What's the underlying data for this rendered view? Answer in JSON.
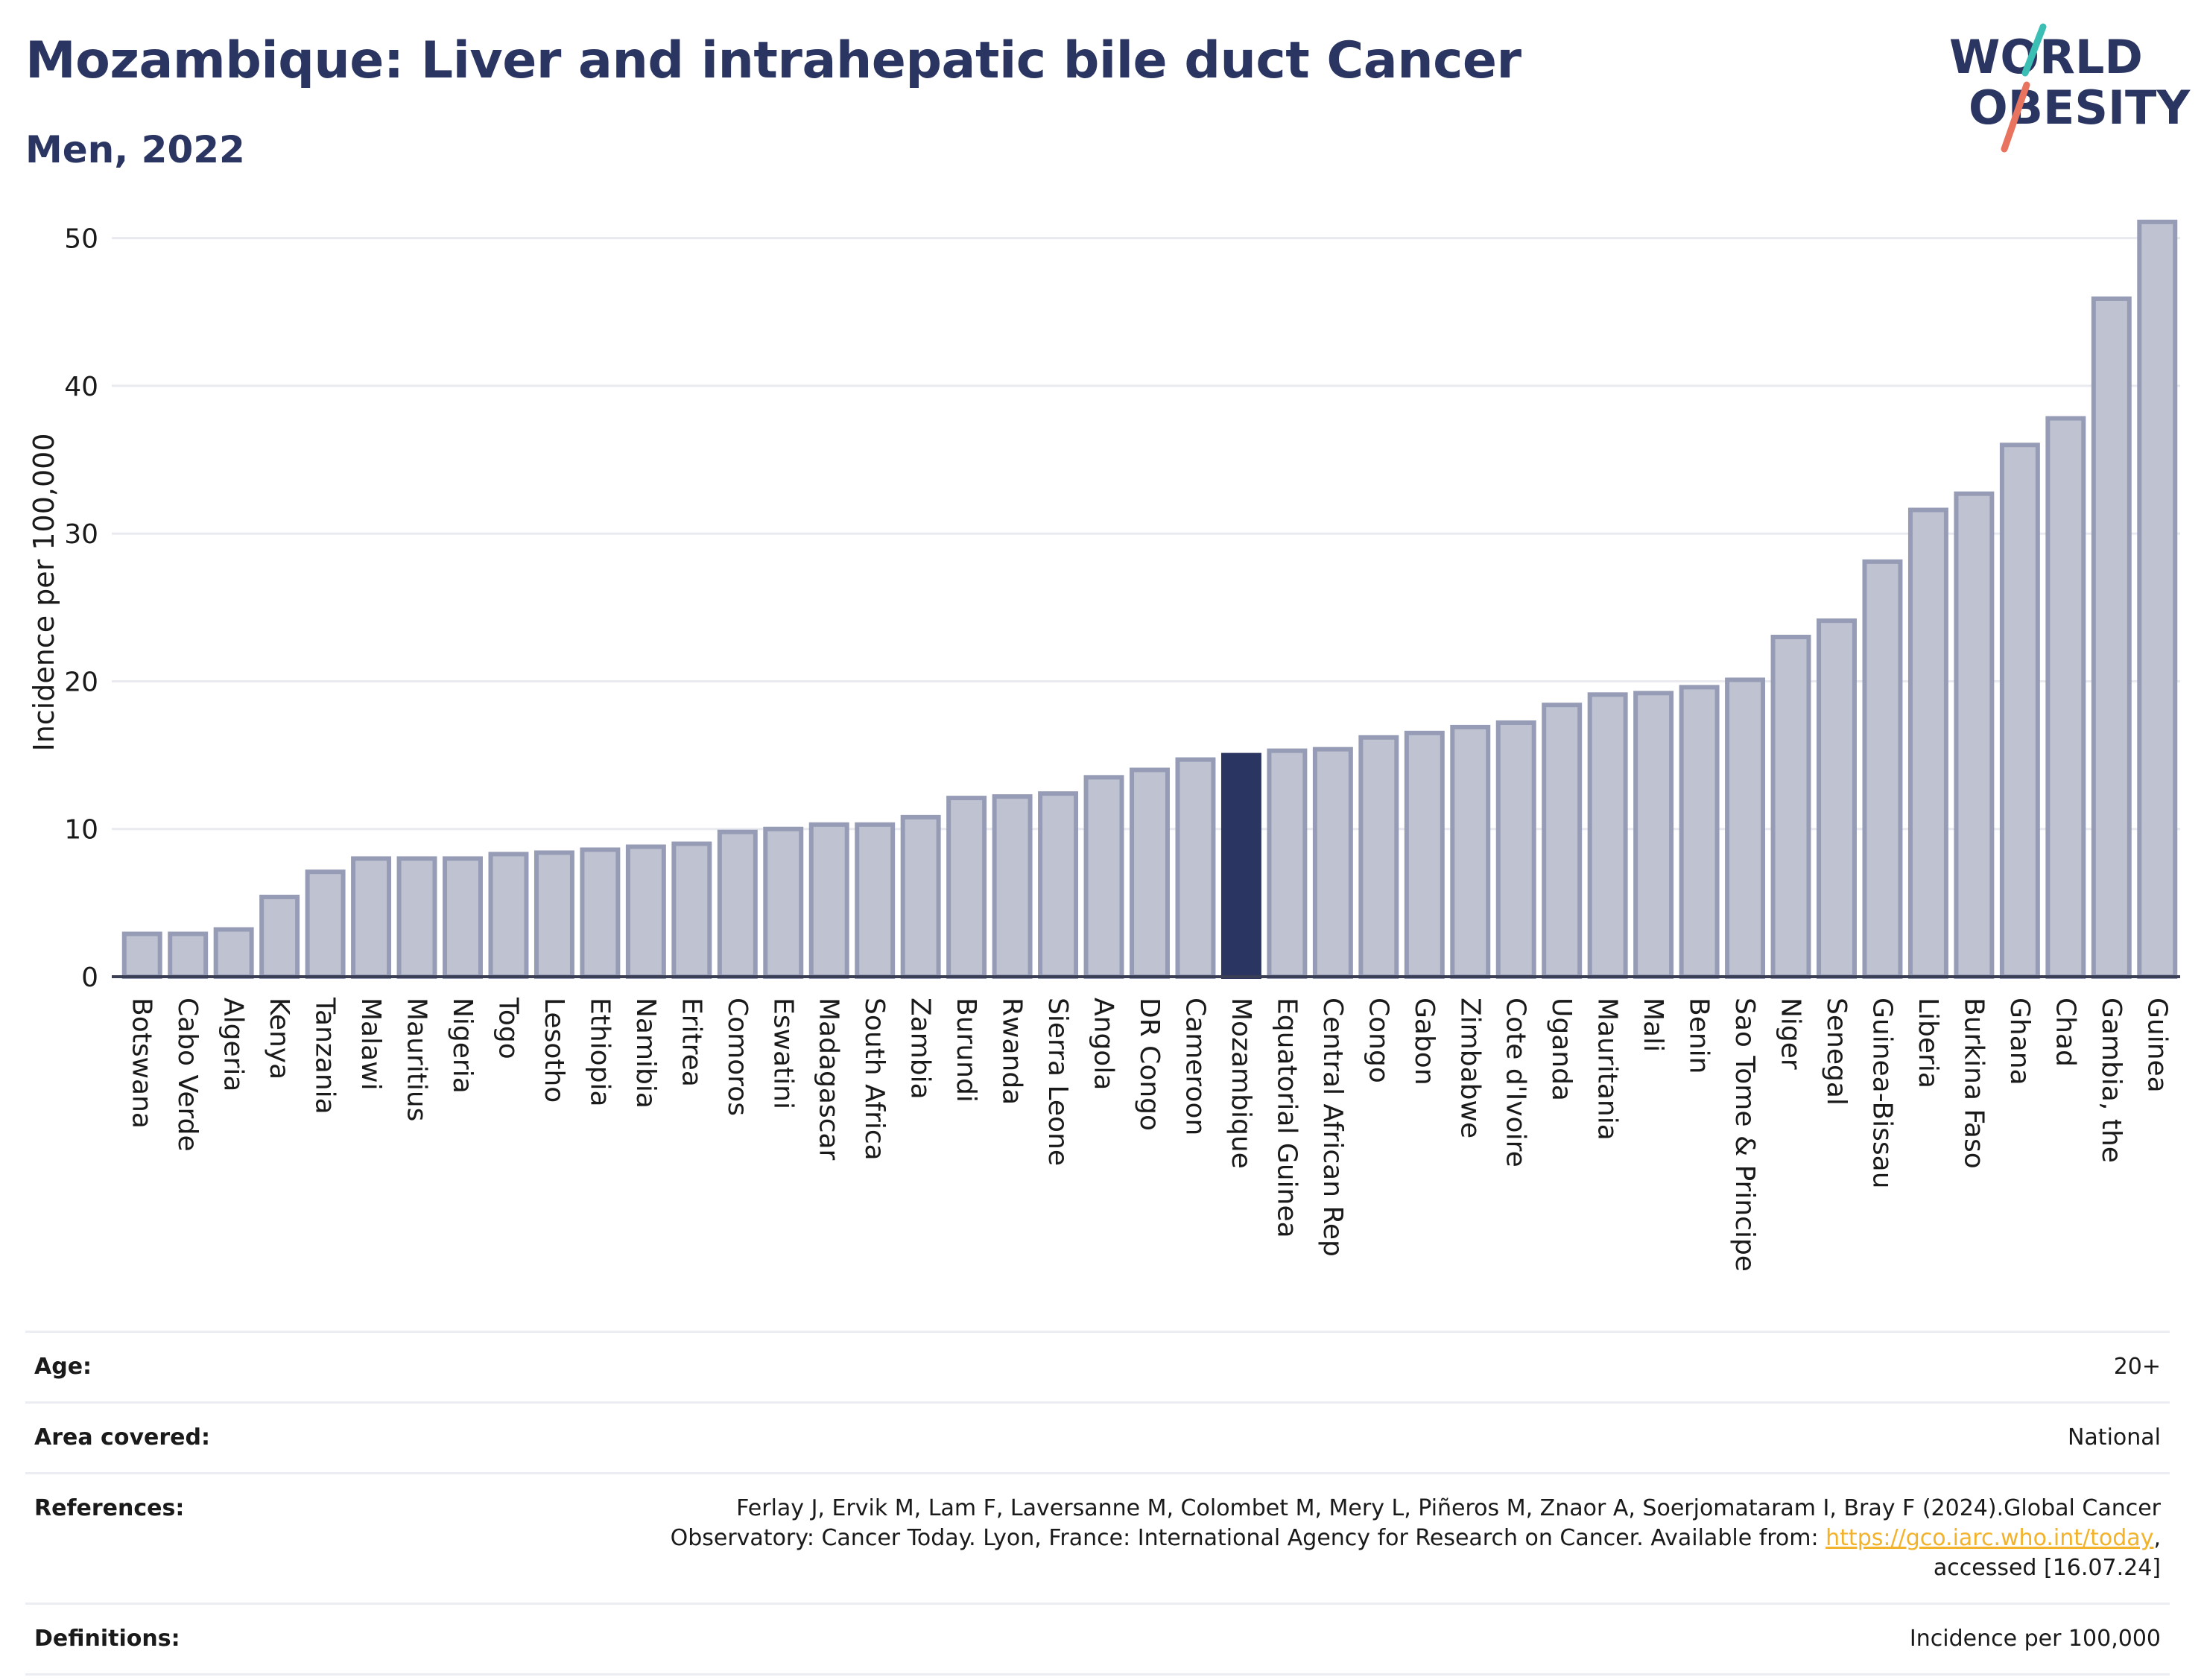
{
  "title": "Mozambique: Liver and intrahepatic bile duct Cancer",
  "subtitle": "Men, 2022",
  "logo": {
    "line1": "WORLD",
    "line2": "OBESITY"
  },
  "colors": {
    "title": "#2b3561",
    "bar_fill": "#bfc3d1",
    "bar_stroke": "#969cb5",
    "highlight": "#2b3561",
    "grid": "#e8eaf0",
    "link": "#f2b22a",
    "logo_teal": "#3bbfb5",
    "logo_coral": "#e8735f"
  },
  "chart_data": {
    "type": "bar",
    "ylabel": "Incidence per 100,000",
    "ylim": [
      0,
      52
    ],
    "yticks": [
      0,
      10,
      20,
      30,
      40,
      50
    ],
    "grid": true,
    "highlight": "Mozambique",
    "categories": [
      "Botswana",
      "Cabo Verde",
      "Algeria",
      "Kenya",
      "Tanzania",
      "Malawi",
      "Mauritius",
      "Nigeria",
      "Togo",
      "Lesotho",
      "Ethiopia",
      "Namibia",
      "Eritrea",
      "Comoros",
      "Eswatini",
      "Madagascar",
      "South Africa",
      "Zambia",
      "Burundi",
      "Rwanda",
      "Sierra Leone",
      "Angola",
      "DR Congo",
      "Cameroon",
      "Mozambique",
      "Equatorial Guinea",
      "Central African Rep",
      "Congo",
      "Gabon",
      "Zimbabwe",
      "Cote d'Ivoire",
      "Uganda",
      "Mauritania",
      "Mali",
      "Benin",
      "Sao Tome & Principe",
      "Niger",
      "Senegal",
      "Guinea-Bissau",
      "Liberia",
      "Burkina Faso",
      "Ghana",
      "Chad",
      "Gambia, the",
      "Guinea"
    ],
    "values": [
      2.9,
      2.9,
      3.2,
      5.4,
      7.1,
      8.0,
      8.0,
      8.0,
      8.3,
      8.4,
      8.6,
      8.8,
      9.0,
      9.8,
      10.0,
      10.3,
      10.3,
      10.8,
      12.1,
      12.2,
      12.4,
      13.5,
      14.0,
      14.7,
      15.0,
      15.3,
      15.4,
      16.2,
      16.5,
      16.9,
      17.2,
      18.4,
      19.1,
      19.2,
      19.6,
      20.1,
      23.0,
      24.1,
      28.1,
      31.6,
      32.7,
      36.0,
      37.8,
      45.9,
      51.1
    ]
  },
  "info": {
    "age_label": "Age:",
    "age_value": "20+",
    "area_label": "Area covered:",
    "area_value": "National",
    "references_label": "References:",
    "references_line1": "Ferlay J, Ervik M, Lam F, Laversanne M, Colombet M, Mery L, Piñeros M, Znaor A, Soerjomataram I, Bray F (2024).Global Cancer",
    "references_line2": "Observatory: Cancer Today. Lyon, France: International Agency for Research on Cancer. Available from: ",
    "references_link": "https://gco.iarc.who.int/today",
    "references_line2_end": ",",
    "references_line3": "accessed [16.07.24]",
    "definitions_label": "Definitions:",
    "definitions_value": "Incidence per 100,000"
  }
}
